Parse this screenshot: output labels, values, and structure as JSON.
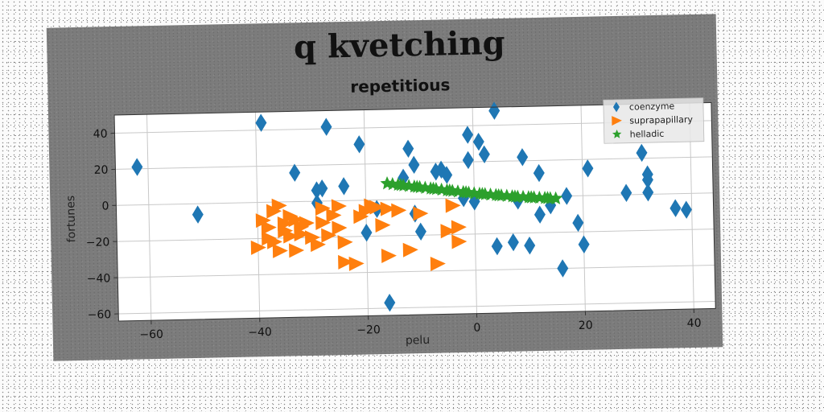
{
  "chart_data": {
    "type": "scatter",
    "title": "q kvetching",
    "subtitle": "repetitious",
    "xlabel": "pelu",
    "ylabel": "fortunes",
    "xlim": [
      -66,
      44
    ],
    "ylim": [
      -64,
      50
    ],
    "xticks": [
      -60,
      -40,
      -20,
      0,
      20,
      40
    ],
    "yticks": [
      40,
      20,
      0,
      -20,
      -40,
      -60
    ],
    "grid": true,
    "legend_position": "top-right",
    "series": [
      {
        "name": "coenzyme",
        "marker": "diamond",
        "color": "#1f77b4",
        "points": [
          [
            -62,
            21
          ],
          [
            -51,
            -6
          ],
          [
            -39,
            44
          ],
          [
            -33,
            16
          ],
          [
            -29,
            6
          ],
          [
            -28,
            7
          ],
          [
            -27,
            41
          ],
          [
            -24,
            8
          ],
          [
            -21,
            31
          ],
          [
            -20,
            -18
          ],
          [
            -18,
            -5
          ],
          [
            -16,
            -57
          ],
          [
            -13,
            12
          ],
          [
            -12,
            28
          ],
          [
            -11,
            -8
          ],
          [
            -11,
            19
          ],
          [
            -7,
            15
          ],
          [
            -6,
            16
          ],
          [
            -5,
            13
          ],
          [
            -2,
            0
          ],
          [
            -1,
            35
          ],
          [
            -1,
            21
          ],
          [
            0,
            -2
          ],
          [
            1,
            31
          ],
          [
            2,
            24
          ],
          [
            4,
            48
          ],
          [
            4,
            -27
          ],
          [
            7,
            -25
          ],
          [
            8,
            -2
          ],
          [
            9,
            22
          ],
          [
            10,
            -27
          ],
          [
            12,
            -10
          ],
          [
            12,
            13
          ],
          [
            14,
            -5
          ],
          [
            17,
            0
          ],
          [
            19,
            -15
          ],
          [
            20,
            -27
          ],
          [
            21,
            15
          ],
          [
            28,
            1
          ],
          [
            31,
            23
          ],
          [
            32,
            11
          ],
          [
            32,
            8
          ],
          [
            32,
            1
          ],
          [
            37,
            -8
          ],
          [
            39,
            -9
          ],
          [
            16,
            -40
          ],
          [
            -29,
            -1
          ],
          [
            -10,
            -18
          ]
        ]
      },
      {
        "name": "suprapapillary",
        "marker": "triangle-right",
        "color": "#ff7f0e",
        "points": [
          [
            -40,
            -25
          ],
          [
            -39,
            -10
          ],
          [
            -38,
            -14
          ],
          [
            -38,
            -20
          ],
          [
            -37,
            -5
          ],
          [
            -37,
            -22
          ],
          [
            -36,
            -2
          ],
          [
            -36,
            -27
          ],
          [
            -35,
            -12
          ],
          [
            -35,
            -16
          ],
          [
            -34,
            -8
          ],
          [
            -34,
            -19
          ],
          [
            -33,
            -10
          ],
          [
            -33,
            -27
          ],
          [
            -32,
            -14
          ],
          [
            -32,
            -18
          ],
          [
            -31,
            -12
          ],
          [
            -30,
            -20
          ],
          [
            -29,
            -24
          ],
          [
            -28,
            -4
          ],
          [
            -28,
            -12
          ],
          [
            -27,
            -19
          ],
          [
            -26,
            -8
          ],
          [
            -25,
            -3
          ],
          [
            -25,
            -15
          ],
          [
            -24,
            -23
          ],
          [
            -24,
            -34
          ],
          [
            -22,
            -35
          ],
          [
            -21,
            -9
          ],
          [
            -20,
            -6
          ],
          [
            -19,
            -3
          ],
          [
            -18,
            -4
          ],
          [
            -17,
            -14
          ],
          [
            -16,
            -5
          ],
          [
            -16,
            -31
          ],
          [
            -14,
            -6
          ],
          [
            -12,
            -28
          ],
          [
            -10,
            -8
          ],
          [
            -7,
            -36
          ],
          [
            -5,
            -18
          ],
          [
            -3,
            -16
          ],
          [
            -3,
            -24
          ],
          [
            -4,
            -4
          ]
        ]
      },
      {
        "name": "helladic",
        "marker": "star",
        "color": "#2ca02c",
        "points": [
          [
            -16,
            9
          ],
          [
            -15,
            8.5
          ],
          [
            -14,
            8.1
          ],
          [
            -13,
            7.7
          ],
          [
            -12,
            7.3
          ],
          [
            -11,
            6.9
          ],
          [
            -10,
            6.5
          ],
          [
            -9,
            6.1
          ],
          [
            -8,
            5.7
          ],
          [
            -7,
            5.3
          ],
          [
            -6,
            4.9
          ],
          [
            -5,
            4.5
          ],
          [
            -4,
            4.1
          ],
          [
            -3,
            3.7
          ],
          [
            -2,
            3.3
          ],
          [
            -1,
            2.9
          ],
          [
            0,
            2.5
          ],
          [
            1,
            2.2
          ],
          [
            2,
            1.9
          ],
          [
            3,
            1.6
          ],
          [
            4,
            1.3
          ],
          [
            5,
            1.0
          ],
          [
            6,
            0.7
          ],
          [
            7,
            0.4
          ],
          [
            8,
            0.1
          ],
          [
            9,
            -0.1
          ],
          [
            10,
            -0.3
          ],
          [
            11,
            -0.5
          ],
          [
            12,
            -0.7
          ],
          [
            13,
            -0.9
          ],
          [
            14,
            -1.1
          ],
          [
            15,
            -1.3
          ],
          [
            -13.5,
            7.9
          ],
          [
            -10.5,
            6.7
          ],
          [
            -7.5,
            5.5
          ],
          [
            -4.5,
            4.3
          ],
          [
            -1.5,
            3.1
          ],
          [
            1.5,
            2.0
          ],
          [
            4.5,
            1.1
          ],
          [
            7.5,
            0.2
          ],
          [
            10.5,
            -0.4
          ],
          [
            13.5,
            -1.0
          ]
        ]
      }
    ]
  }
}
